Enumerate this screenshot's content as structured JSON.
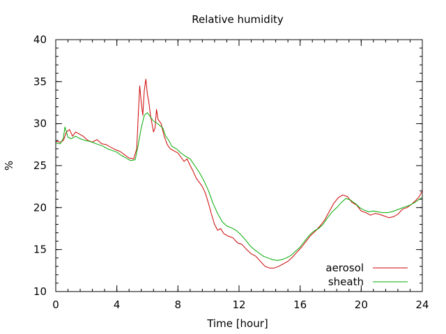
{
  "chart_data": {
    "type": "line",
    "title": "Relative humidity",
    "xlabel": "Time [hour]",
    "ylabel": "%",
    "xlim": [
      0,
      24
    ],
    "ylim": [
      10,
      40
    ],
    "xticks": [
      0,
      4,
      8,
      12,
      16,
      20,
      24
    ],
    "yticks": [
      10,
      15,
      20,
      25,
      30,
      35,
      40
    ],
    "x_minor_step": 0.8,
    "y_minor_step": 1,
    "grid": false,
    "legend_position": "bottom-right",
    "series": [
      {
        "name": "aerosol",
        "color": "#cc0000",
        "points": [
          [
            0,
            27.9
          ],
          [
            0.3,
            27.8
          ],
          [
            0.5,
            28.0
          ],
          [
            0.7,
            29.0
          ],
          [
            0.9,
            29.3
          ],
          [
            1.1,
            28.5
          ],
          [
            1.3,
            29.0
          ],
          [
            1.5,
            28.8
          ],
          [
            1.8,
            28.5
          ],
          [
            2.1,
            28.0
          ],
          [
            2.4,
            27.8
          ],
          [
            2.7,
            28.1
          ],
          [
            3.0,
            27.6
          ],
          [
            3.3,
            27.5
          ],
          [
            3.6,
            27.2
          ],
          [
            3.9,
            26.9
          ],
          [
            4.2,
            26.7
          ],
          [
            4.5,
            26.3
          ],
          [
            4.8,
            25.9
          ],
          [
            5.1,
            25.8
          ],
          [
            5.3,
            27.0
          ],
          [
            5.4,
            31.0
          ],
          [
            5.5,
            34.5
          ],
          [
            5.6,
            32.5
          ],
          [
            5.7,
            31.0
          ],
          [
            5.8,
            34.0
          ],
          [
            5.9,
            35.3
          ],
          [
            6.0,
            33.5
          ],
          [
            6.1,
            32.5
          ],
          [
            6.2,
            31.0
          ],
          [
            6.3,
            30.0
          ],
          [
            6.4,
            29.0
          ],
          [
            6.5,
            29.5
          ],
          [
            6.6,
            31.7
          ],
          [
            6.7,
            30.5
          ],
          [
            6.9,
            30.0
          ],
          [
            7.1,
            28.5
          ],
          [
            7.3,
            27.5
          ],
          [
            7.5,
            27.0
          ],
          [
            7.7,
            26.8
          ],
          [
            8.0,
            26.5
          ],
          [
            8.2,
            26.0
          ],
          [
            8.4,
            25.5
          ],
          [
            8.6,
            25.8
          ],
          [
            8.8,
            25.0
          ],
          [
            9.0,
            24.3
          ],
          [
            9.2,
            23.5
          ],
          [
            9.4,
            23.0
          ],
          [
            9.6,
            22.5
          ],
          [
            9.8,
            21.7
          ],
          [
            10.0,
            20.5
          ],
          [
            10.2,
            19.2
          ],
          [
            10.4,
            18.0
          ],
          [
            10.6,
            17.3
          ],
          [
            10.8,
            17.5
          ],
          [
            11.0,
            16.9
          ],
          [
            11.3,
            16.6
          ],
          [
            11.6,
            16.4
          ],
          [
            11.9,
            15.8
          ],
          [
            12.2,
            15.6
          ],
          [
            12.5,
            15.0
          ],
          [
            12.8,
            14.5
          ],
          [
            13.1,
            14.2
          ],
          [
            13.4,
            13.6
          ],
          [
            13.7,
            13.0
          ],
          [
            14.0,
            12.8
          ],
          [
            14.3,
            12.8
          ],
          [
            14.6,
            13.0
          ],
          [
            14.9,
            13.3
          ],
          [
            15.2,
            13.6
          ],
          [
            15.5,
            14.1
          ],
          [
            15.8,
            14.7
          ],
          [
            16.1,
            15.3
          ],
          [
            16.4,
            16.0
          ],
          [
            16.7,
            16.7
          ],
          [
            17.0,
            17.2
          ],
          [
            17.3,
            17.8
          ],
          [
            17.6,
            18.5
          ],
          [
            17.9,
            19.5
          ],
          [
            18.2,
            20.5
          ],
          [
            18.5,
            21.2
          ],
          [
            18.8,
            21.5
          ],
          [
            19.1,
            21.3
          ],
          [
            19.4,
            20.6
          ],
          [
            19.7,
            20.3
          ],
          [
            20.0,
            19.6
          ],
          [
            20.3,
            19.4
          ],
          [
            20.6,
            19.1
          ],
          [
            20.9,
            19.3
          ],
          [
            21.2,
            19.2
          ],
          [
            21.5,
            19.0
          ],
          [
            21.8,
            18.8
          ],
          [
            22.1,
            18.9
          ],
          [
            22.4,
            19.2
          ],
          [
            22.7,
            19.8
          ],
          [
            23.0,
            20.0
          ],
          [
            23.3,
            20.4
          ],
          [
            23.6,
            20.9
          ],
          [
            23.8,
            21.3
          ],
          [
            24.0,
            22.0
          ]
        ]
      },
      {
        "name": "sheath",
        "color": "#00aa00",
        "points": [
          [
            0,
            27.7
          ],
          [
            0.3,
            27.6
          ],
          [
            0.5,
            28.3
          ],
          [
            0.6,
            29.6
          ],
          [
            0.8,
            28.4
          ],
          [
            1.0,
            28.2
          ],
          [
            1.3,
            28.5
          ],
          [
            1.6,
            28.2
          ],
          [
            1.9,
            28.0
          ],
          [
            2.2,
            27.9
          ],
          [
            2.5,
            27.7
          ],
          [
            2.8,
            27.5
          ],
          [
            3.1,
            27.3
          ],
          [
            3.4,
            27.0
          ],
          [
            3.7,
            26.8
          ],
          [
            4.0,
            26.6
          ],
          [
            4.3,
            26.2
          ],
          [
            4.6,
            25.9
          ],
          [
            4.9,
            25.6
          ],
          [
            5.2,
            25.7
          ],
          [
            5.4,
            27.5
          ],
          [
            5.6,
            29.5
          ],
          [
            5.8,
            31.0
          ],
          [
            6.0,
            31.3
          ],
          [
            6.2,
            30.8
          ],
          [
            6.4,
            30.3
          ],
          [
            6.6,
            30.1
          ],
          [
            6.8,
            29.8
          ],
          [
            7.0,
            29.5
          ],
          [
            7.2,
            28.5
          ],
          [
            7.4,
            28.0
          ],
          [
            7.6,
            27.3
          ],
          [
            7.9,
            27.0
          ],
          [
            8.2,
            26.5
          ],
          [
            8.5,
            26.1
          ],
          [
            8.8,
            25.8
          ],
          [
            9.1,
            25.0
          ],
          [
            9.4,
            24.2
          ],
          [
            9.7,
            23.2
          ],
          [
            10.0,
            22.0
          ],
          [
            10.3,
            20.5
          ],
          [
            10.6,
            19.3
          ],
          [
            10.9,
            18.3
          ],
          [
            11.2,
            17.8
          ],
          [
            11.5,
            17.6
          ],
          [
            11.8,
            17.3
          ],
          [
            12.1,
            16.8
          ],
          [
            12.4,
            16.2
          ],
          [
            12.7,
            15.5
          ],
          [
            13.0,
            15.0
          ],
          [
            13.3,
            14.6
          ],
          [
            13.6,
            14.2
          ],
          [
            13.9,
            14.0
          ],
          [
            14.2,
            13.8
          ],
          [
            14.5,
            13.7
          ],
          [
            14.8,
            13.8
          ],
          [
            15.1,
            14.0
          ],
          [
            15.4,
            14.3
          ],
          [
            15.7,
            14.8
          ],
          [
            16.0,
            15.3
          ],
          [
            16.3,
            16.0
          ],
          [
            16.6,
            16.7
          ],
          [
            16.9,
            17.2
          ],
          [
            17.2,
            17.5
          ],
          [
            17.5,
            18.0
          ],
          [
            17.8,
            18.8
          ],
          [
            18.1,
            19.5
          ],
          [
            18.4,
            20.0
          ],
          [
            18.7,
            20.6
          ],
          [
            19.0,
            21.1
          ],
          [
            19.3,
            20.9
          ],
          [
            19.6,
            20.5
          ],
          [
            19.9,
            20.0
          ],
          [
            20.2,
            19.7
          ],
          [
            20.5,
            19.5
          ],
          [
            20.8,
            19.6
          ],
          [
            21.1,
            19.5
          ],
          [
            21.4,
            19.4
          ],
          [
            21.7,
            19.4
          ],
          [
            22.0,
            19.5
          ],
          [
            22.3,
            19.7
          ],
          [
            22.6,
            19.9
          ],
          [
            22.9,
            20.1
          ],
          [
            23.2,
            20.3
          ],
          [
            23.5,
            20.6
          ],
          [
            23.8,
            21.0
          ],
          [
            24.0,
            21.2
          ]
        ]
      }
    ]
  }
}
